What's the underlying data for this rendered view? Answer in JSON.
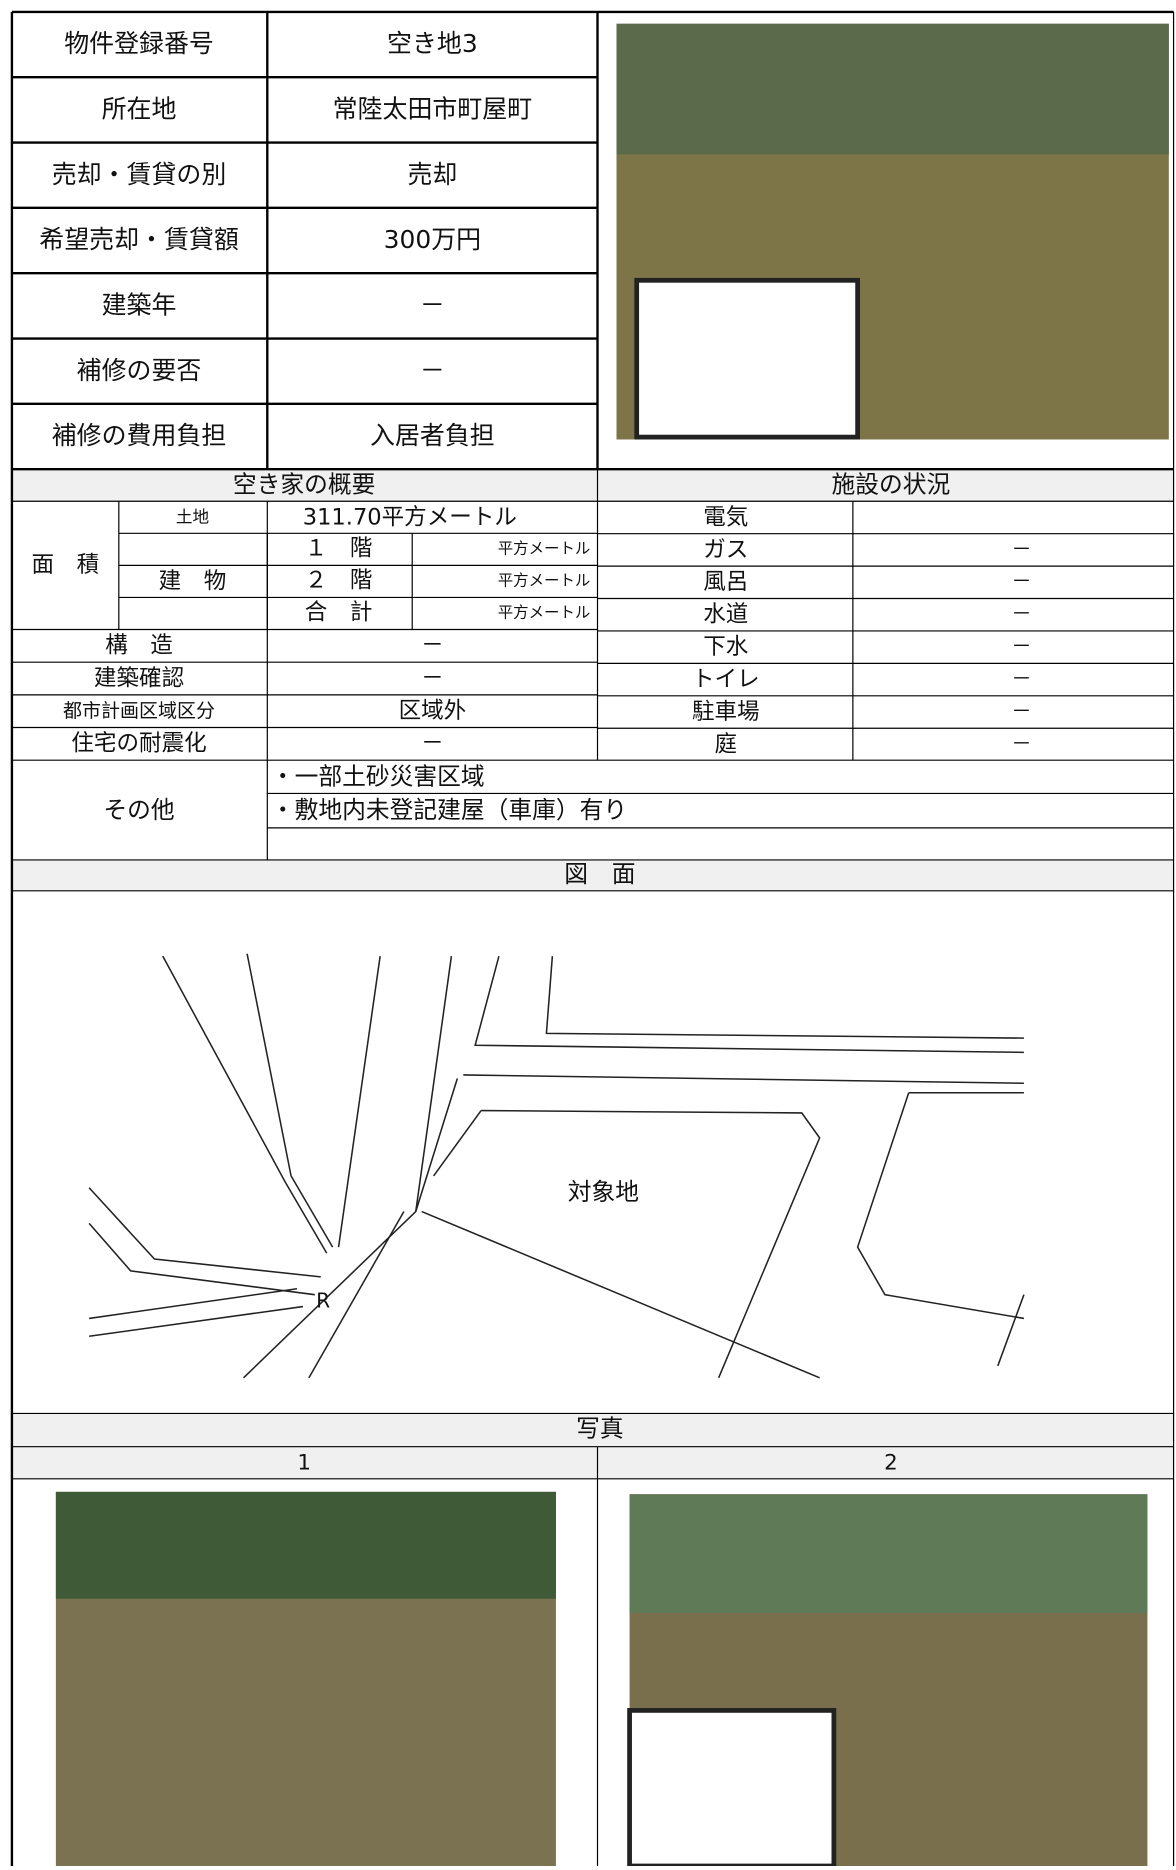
{
  "property_table": {
    "rows": [
      [
        "物件登録番号",
        "空き地3"
      ],
      [
        "所在地",
        "常陸太田市町屋町"
      ],
      [
        "売却・賃貸の別",
        "売却"
      ],
      [
        "希望売却・賃貸額",
        "300万円"
      ],
      [
        "建築年",
        "－"
      ],
      [
        "補修の要否",
        "－"
      ],
      [
        "補修の費用負担",
        "入居者負担"
      ]
    ]
  },
  "overview": {
    "header": "空き家の概要",
    "area_label": "面　積",
    "land_label": "土地",
    "land_value": "311.70平方メートル",
    "building_label": "建　物",
    "floors": [
      {
        "label": "１　階",
        "value": "平方メートル"
      },
      {
        "label": "２　階",
        "value": "平方メートル"
      },
      {
        "label": "合　計",
        "value": "平方メートル"
      }
    ],
    "rows": [
      [
        "構　造",
        "－"
      ],
      [
        "建築確認",
        "－"
      ],
      [
        "都市計画区域区分",
        "区域外"
      ],
      [
        "住宅の耐震化",
        "－"
      ]
    ],
    "other_label": "その他",
    "other_items": [
      "・一部土砂災害区域",
      "・敷地内未登記建屋（車庫）有り"
    ]
  },
  "facilities": {
    "header": "施設の状況",
    "rows": [
      {
        "name": "電気"
      },
      {
        "name": "ガス",
        "status": "－"
      },
      {
        "name": "風呂",
        "status": "－"
      },
      {
        "name": "水道",
        "status": "－"
      },
      {
        "name": "下水",
        "status": "－"
      },
      {
        "name": "トイレ",
        "status": "－"
      },
      {
        "name": "駐車場",
        "status": "－"
      },
      {
        "name": "庭",
        "status": "－"
      }
    ]
  },
  "drawing": {
    "header": "図　面",
    "labels": [
      "対象地",
      "R"
    ]
  },
  "photos": {
    "header": "写真",
    "items": [
      "1",
      "2"
    ]
  }
}
